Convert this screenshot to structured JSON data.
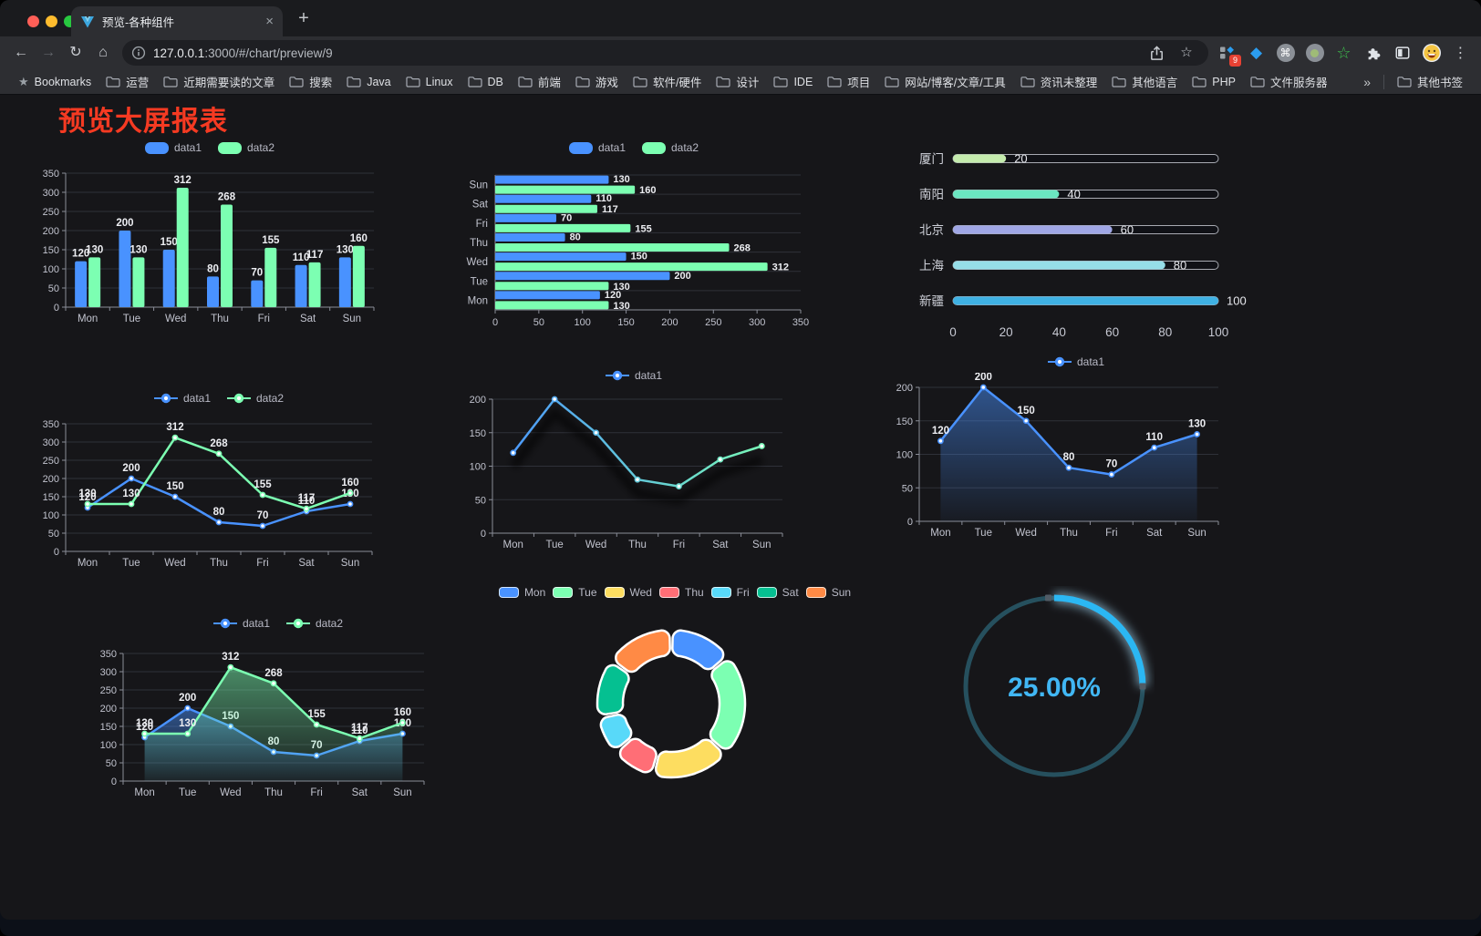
{
  "browser": {
    "tab": {
      "title": "预览-各种组件"
    },
    "url": {
      "host": "127.0.0.1",
      "rest": ":3000/#/chart/preview/9"
    },
    "icons": {
      "back": "←",
      "forward": "→",
      "reload": "↻",
      "home": "⌂",
      "menu": "⋮",
      "star": "☆",
      "new_tab": "+",
      "close_tab": "×",
      "bookmarks_star": "★",
      "gem": "◆",
      "command": "⌘",
      "green_star": "☆"
    },
    "extensions_badge": "9",
    "bookmarks_label": "Bookmarks",
    "bookmarks": [
      "运营",
      "近期需要读的文章",
      "搜索",
      "Java",
      "Linux",
      "DB",
      "前端",
      "游戏",
      "软件/硬件",
      "设计",
      "IDE",
      "项目",
      "网站/博客/文章/工具",
      "资讯未整理",
      "其他语言",
      "PHP",
      "文件服务器"
    ],
    "bookmarks_overflow": "»",
    "other_bookmarks": "其他书签"
  },
  "page": {
    "title": "预览大屏报表",
    "title_color": "#f53a22"
  },
  "colors": {
    "series1": "#4992ff",
    "series2": "#7cffb2",
    "axis_label": "#c1c3ce",
    "grid_line": "#2f3139",
    "value_label": "#edeef2"
  },
  "chart_data": [
    {
      "id": "bar-vertical",
      "type": "bar",
      "categories": [
        "Mon",
        "Tue",
        "Wed",
        "Thu",
        "Fri",
        "Sat",
        "Sun"
      ],
      "series": [
        {
          "name": "data1",
          "color": "#4992ff",
          "values": [
            120,
            200,
            150,
            80,
            70,
            110,
            130
          ]
        },
        {
          "name": "data2",
          "color": "#7cffb2",
          "values": [
            130,
            130,
            312,
            268,
            155,
            117,
            160
          ]
        }
      ],
      "ylim": [
        0,
        350
      ],
      "ytick_step": 50,
      "value_labels": true,
      "legend_position": "top",
      "grid": true
    },
    {
      "id": "bar-horizontal",
      "type": "hbar",
      "categories": [
        "Mon",
        "Tue",
        "Wed",
        "Thu",
        "Fri",
        "Sat",
        "Sun"
      ],
      "series": [
        {
          "name": "data1",
          "color": "#4992ff",
          "values": [
            120,
            200,
            150,
            80,
            70,
            110,
            130
          ]
        },
        {
          "name": "data2",
          "color": "#7cffb2",
          "values": [
            130,
            130,
            312,
            268,
            155,
            117,
            160
          ]
        }
      ],
      "xlim": [
        0,
        350
      ],
      "xtick_step": 50,
      "value_labels": true,
      "legend_position": "top",
      "grid": true
    },
    {
      "id": "progress-bars",
      "type": "progress",
      "max": 100,
      "xticks": [
        0,
        20,
        40,
        60,
        80,
        100
      ],
      "rows": [
        {
          "label": "厦门",
          "value": 20,
          "color": "#c4ebad"
        },
        {
          "label": "南阳",
          "value": 40,
          "color": "#6be6c1"
        },
        {
          "label": "北京",
          "value": 60,
          "color": "#a0a7e6"
        },
        {
          "label": "上海",
          "value": 80,
          "color": "#96dee8"
        },
        {
          "label": "新疆",
          "value": 100,
          "color": "#3fb1e3"
        }
      ]
    },
    {
      "id": "line-two-series",
      "type": "line",
      "categories": [
        "Mon",
        "Tue",
        "Wed",
        "Thu",
        "Fri",
        "Sat",
        "Sun"
      ],
      "series": [
        {
          "name": "data1",
          "color": "#4992ff",
          "values": [
            120,
            200,
            150,
            80,
            70,
            110,
            130
          ]
        },
        {
          "name": "data2",
          "color": "#7cffb2",
          "values": [
            130,
            130,
            312,
            268,
            155,
            117,
            160
          ]
        }
      ],
      "ylim": [
        0,
        350
      ],
      "ytick_step": 50,
      "value_labels": true,
      "legend_position": "top",
      "grid": true
    },
    {
      "id": "line-gradient",
      "type": "line",
      "shadow": true,
      "categories": [
        "Mon",
        "Tue",
        "Wed",
        "Thu",
        "Fri",
        "Sat",
        "Sun"
      ],
      "series": [
        {
          "name": "data1",
          "gradient": [
            "#4992ff",
            "#7cffb2"
          ],
          "values": [
            120,
            200,
            150,
            80,
            70,
            110,
            130
          ]
        }
      ],
      "ylim": [
        0,
        200
      ],
      "ytick_step": 50,
      "value_labels": false,
      "legend_position": "top",
      "grid": true
    },
    {
      "id": "area-single",
      "type": "line",
      "area": true,
      "categories": [
        "Mon",
        "Tue",
        "Wed",
        "Thu",
        "Fri",
        "Sat",
        "Sun"
      ],
      "series": [
        {
          "name": "data1",
          "color": "#4992ff",
          "values": [
            120,
            200,
            150,
            80,
            70,
            110,
            130
          ]
        }
      ],
      "ylim": [
        0,
        200
      ],
      "ytick_step": 50,
      "value_labels": true,
      "legend_position": "top",
      "grid": true
    },
    {
      "id": "area-two-series",
      "type": "line",
      "area": true,
      "categories": [
        "Mon",
        "Tue",
        "Wed",
        "Thu",
        "Fri",
        "Sat",
        "Sun"
      ],
      "series": [
        {
          "name": "data1",
          "color": "#4992ff",
          "values": [
            120,
            200,
            150,
            80,
            70,
            110,
            130
          ]
        },
        {
          "name": "data2",
          "color": "#7cffb2",
          "values": [
            130,
            130,
            312,
            268,
            155,
            117,
            160
          ]
        }
      ],
      "ylim": [
        0,
        350
      ],
      "ytick_step": 50,
      "value_labels": true,
      "legend_position": "top",
      "grid": true
    },
    {
      "id": "donut",
      "type": "pie",
      "legend_position": "top",
      "slices": [
        {
          "label": "Mon",
          "value": 120,
          "color": "#4992ff"
        },
        {
          "label": "Tue",
          "value": 200,
          "color": "#7cffb2"
        },
        {
          "label": "Wed",
          "value": 150,
          "color": "#fddd60"
        },
        {
          "label": "Thu",
          "value": 80,
          "color": "#ff6e76"
        },
        {
          "label": "Fri",
          "value": 70,
          "color": "#58d9f9"
        },
        {
          "label": "Sat",
          "value": 110,
          "color": "#05c091"
        },
        {
          "label": "Sun",
          "value": 130,
          "color": "#ff8a45"
        }
      ]
    },
    {
      "id": "gauge",
      "type": "gauge",
      "value": 25,
      "label": "25.00%",
      "color": "#2bb7f3",
      "track_color": "#26505e",
      "text_color": "#41b7f4"
    }
  ]
}
